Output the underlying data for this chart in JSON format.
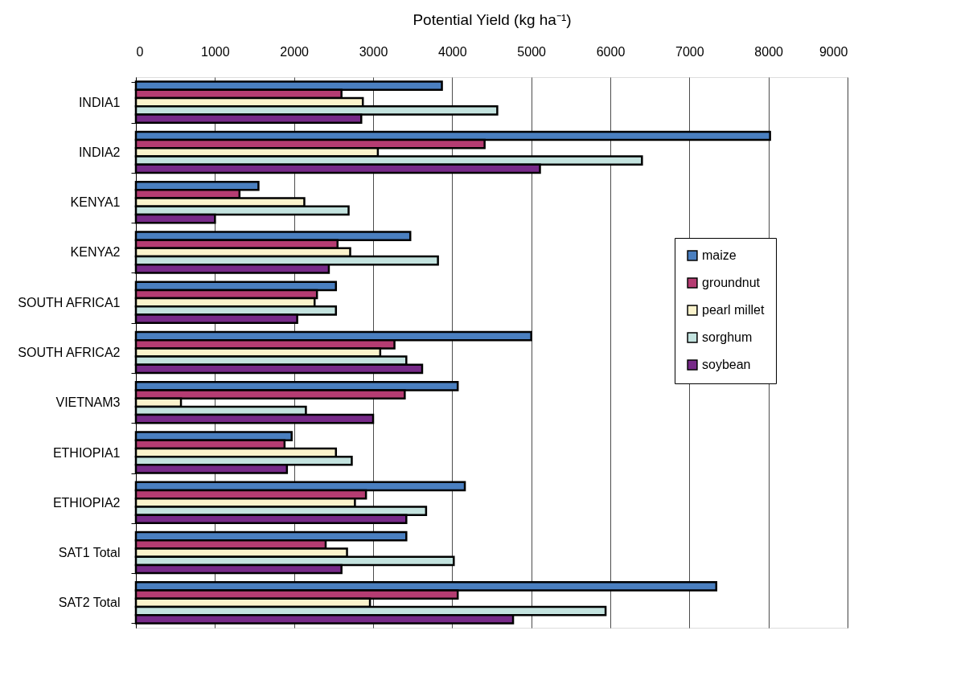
{
  "chart_data": {
    "type": "bar",
    "orientation": "horizontal",
    "xlabel": "Potential Yield (kg ha⁻¹)",
    "categories": [
      "INDIA1",
      "INDIA2",
      "KENYA1",
      "KENYA2",
      "SOUTH AFRICA1",
      "SOUTH AFRICA2",
      "VIETNAM3",
      "ETHIOPIA1",
      "ETHIOPIA2",
      "SAT1 Total",
      "SAT2 Total"
    ],
    "series": [
      {
        "name": "maize",
        "color": "#4a7fc0",
        "values": [
          3870,
          8020,
          1550,
          3470,
          2530,
          5000,
          4070,
          1970,
          4160,
          3420,
          7340
        ]
      },
      {
        "name": "groundnut",
        "color": "#b53c72",
        "values": [
          2600,
          4410,
          1310,
          2550,
          2290,
          3270,
          3400,
          1880,
          2910,
          2400,
          4070
        ]
      },
      {
        "name": "pearl millet",
        "color": "#fbf3cc",
        "values": [
          2870,
          3060,
          2130,
          2710,
          2260,
          3090,
          570,
          2530,
          2770,
          2670,
          2960
        ]
      },
      {
        "name": "sorghum",
        "color": "#c3e3df",
        "values": [
          4570,
          6400,
          2690,
          3820,
          2530,
          3420,
          2150,
          2730,
          3670,
          4020,
          5940
        ]
      },
      {
        "name": "soybean",
        "color": "#772a88",
        "values": [
          2850,
          5110,
          1000,
          2440,
          2040,
          3620,
          3000,
          1910,
          3420,
          2600,
          4770
        ]
      }
    ],
    "xlim": [
      0,
      9000
    ],
    "xticks": [
      0,
      1000,
      2000,
      3000,
      4000,
      5000,
      6000,
      7000,
      8000,
      9000
    ],
    "grid": "x",
    "legend": "right"
  }
}
